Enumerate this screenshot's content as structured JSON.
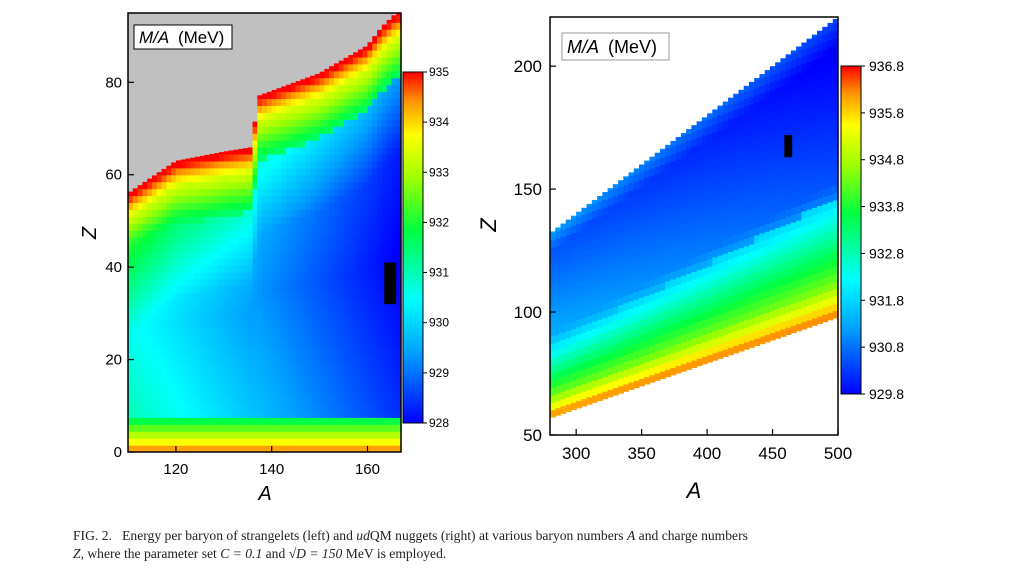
{
  "chart_data": [
    {
      "type": "heatmap",
      "panel": "left",
      "title": "M/A (MeV)",
      "title_italic_part": "M/A",
      "title_unit": "(MeV)",
      "xlabel": "A",
      "ylabel": "Z",
      "xlim": [
        110,
        167
      ],
      "ylim": [
        0,
        95
      ],
      "xticks": [
        "120",
        "140",
        "160"
      ],
      "xtick_values": [
        120,
        140,
        160
      ],
      "yticks": [
        "0",
        "20",
        "40",
        "60",
        "80"
      ],
      "ytick_values": [
        0,
        20,
        40,
        60,
        80
      ],
      "colorbar": {
        "min": 928,
        "max": 935,
        "ticks": [
          "935",
          "934",
          "933",
          "932",
          "931",
          "930",
          "929",
          "928"
        ],
        "tick_values": [
          935,
          934,
          933,
          932,
          931,
          930,
          929,
          928
        ]
      },
      "unphysical_region_color": "#c0c0c0",
      "upper_boundary_Z_at_A": [
        [
          110,
          56
        ],
        [
          120,
          63
        ],
        [
          130,
          65
        ],
        [
          136,
          66
        ],
        [
          137,
          77
        ],
        [
          150,
          82
        ],
        [
          160,
          88
        ],
        [
          163,
          92
        ],
        [
          166,
          95
        ]
      ],
      "minimum_region": {
        "A": 165,
        "Z": [
          32,
          41
        ],
        "value": 928
      }
    },
    {
      "type": "heatmap",
      "panel": "right",
      "title": "M/A (MeV)",
      "title_italic_part": "M/A",
      "title_unit": "(MeV)",
      "xlabel": "A",
      "ylabel": "Z",
      "xlim": [
        280,
        500
      ],
      "ylim": [
        50,
        220
      ],
      "xticks": [
        "300",
        "350",
        "400",
        "450",
        "500"
      ],
      "xtick_values": [
        300,
        350,
        400,
        450,
        500
      ],
      "yticks": [
        "50",
        "100",
        "150",
        "200"
      ],
      "ytick_values": [
        50,
        100,
        150,
        200
      ],
      "colorbar": {
        "min": 929.8,
        "max": 936.8,
        "ticks": [
          "936.8",
          "935.8",
          "934.8",
          "933.8",
          "932.8",
          "931.8",
          "930.8",
          "929.8"
        ],
        "tick_values": [
          936.8,
          935.8,
          934.8,
          933.8,
          932.8,
          931.8,
          930.8,
          929.8
        ]
      },
      "upper_boundary_Z_at_A": [
        [
          280,
          132
        ],
        [
          500,
          220
        ]
      ],
      "lower_boundary_Z_at_A": [
        [
          280,
          57
        ],
        [
          500,
          98
        ]
      ],
      "minimum_region": {
        "A": 462,
        "Z": [
          163,
          172
        ],
        "value": 929.8
      }
    }
  ],
  "caption": {
    "label": "FIG. 2.",
    "text_part1": "Energy per baryon of strangelets (left) and ",
    "udqm": "ud",
    "text_part2": "QM nuggets (right) at various baryon numbers ",
    "A": "A",
    "text_part3": " and charge numbers",
    "Z": "Z",
    "text_part4": ", where the parameter set ",
    "param": "C = 0.1",
    "text_part5": " and ",
    "sqrtD": "√D = 150",
    "text_part6": " MeV is employed."
  }
}
